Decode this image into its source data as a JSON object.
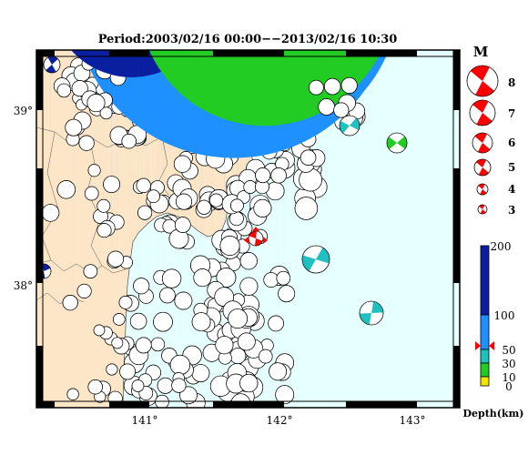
{
  "title": "Period:2003/02/16 00:00−−2013/02/16 10:30",
  "lat_labels": [
    "39°",
    "38°"
  ],
  "lon_labels": [
    "141°",
    "142°",
    "143°"
  ],
  "magnitude_legend": {
    "header": "M",
    "items": [
      "8",
      "7",
      "6",
      "5",
      "4",
      "3"
    ]
  },
  "depth_legend": {
    "ticks": [
      "200",
      "100",
      "50",
      "30",
      "10",
      "0"
    ],
    "caption": "Depth(km)"
  },
  "colors": {
    "sea": "#e6ffff",
    "land": "#fde6c8",
    "depth_0_10": "#f2e600",
    "depth_10_30": "#22cc22",
    "depth_30_50": "#1fc0c0",
    "depth_50_100": "#1e90ff",
    "depth_100_200": "#0a1ea0",
    "main_event": "#ff0000"
  },
  "main_event": {
    "lon": 141.8,
    "lat": 38.25,
    "depth_km": 60
  }
}
